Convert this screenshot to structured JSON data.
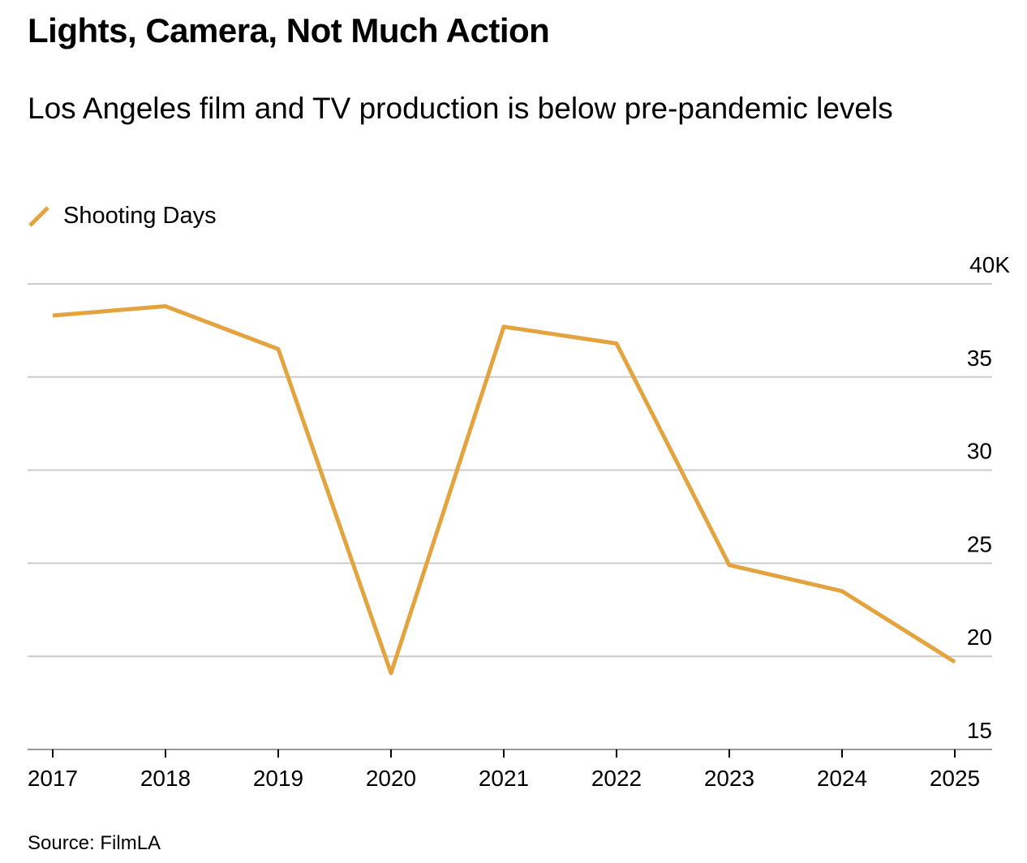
{
  "title": "Lights, Camera, Not Much Action",
  "subtitle": "Los Angeles film and TV production is below pre-pandemic levels",
  "source": "Source: FilmLA",
  "colors": {
    "series": "#E3A33F",
    "grid": "#CCCCCC",
    "axis": "#999999"
  },
  "chart_data": {
    "type": "line",
    "title": "Lights, Camera, Not Much Action",
    "subtitle": "Los Angeles film and TV production is below pre-pandemic levels",
    "xlabel": "",
    "ylabel": "",
    "x": [
      "2017",
      "2018",
      "2019",
      "2020",
      "2021",
      "2022",
      "2023",
      "2024",
      "2025"
    ],
    "series": [
      {
        "name": "Shooting Days",
        "values": [
          38.3,
          38.8,
          36.5,
          19.1,
          37.7,
          36.8,
          24.9,
          23.5,
          19.7
        ]
      }
    ],
    "ylim": [
      15,
      40
    ],
    "yticks": [
      15,
      20,
      25,
      30,
      35,
      40
    ],
    "ytick_labels": [
      "15",
      "20",
      "25",
      "30",
      "35",
      "40K"
    ],
    "y_axis_side": "right",
    "grid": true,
    "legend": "top-left",
    "units": "thousands of days"
  }
}
